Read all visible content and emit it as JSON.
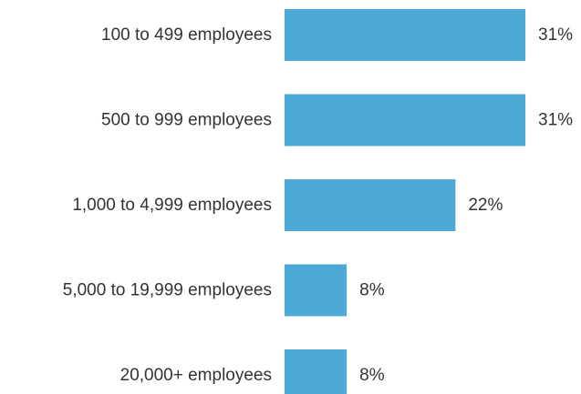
{
  "chart_data": {
    "type": "bar",
    "orientation": "horizontal",
    "categories": [
      "100 to 499 employees",
      "500 to 999 employees",
      "1,000 to 4,999 employees",
      "5,000 to 19,999 employees",
      "20,000+ employees"
    ],
    "values": [
      31,
      31,
      22,
      8,
      8
    ],
    "value_labels": [
      "31%",
      "31%",
      "22%",
      "8%",
      "8%"
    ],
    "unit": "%",
    "xlim": [
      0,
      31
    ],
    "grid": false,
    "legend": "none",
    "bar_color": "#4DAAD6"
  }
}
